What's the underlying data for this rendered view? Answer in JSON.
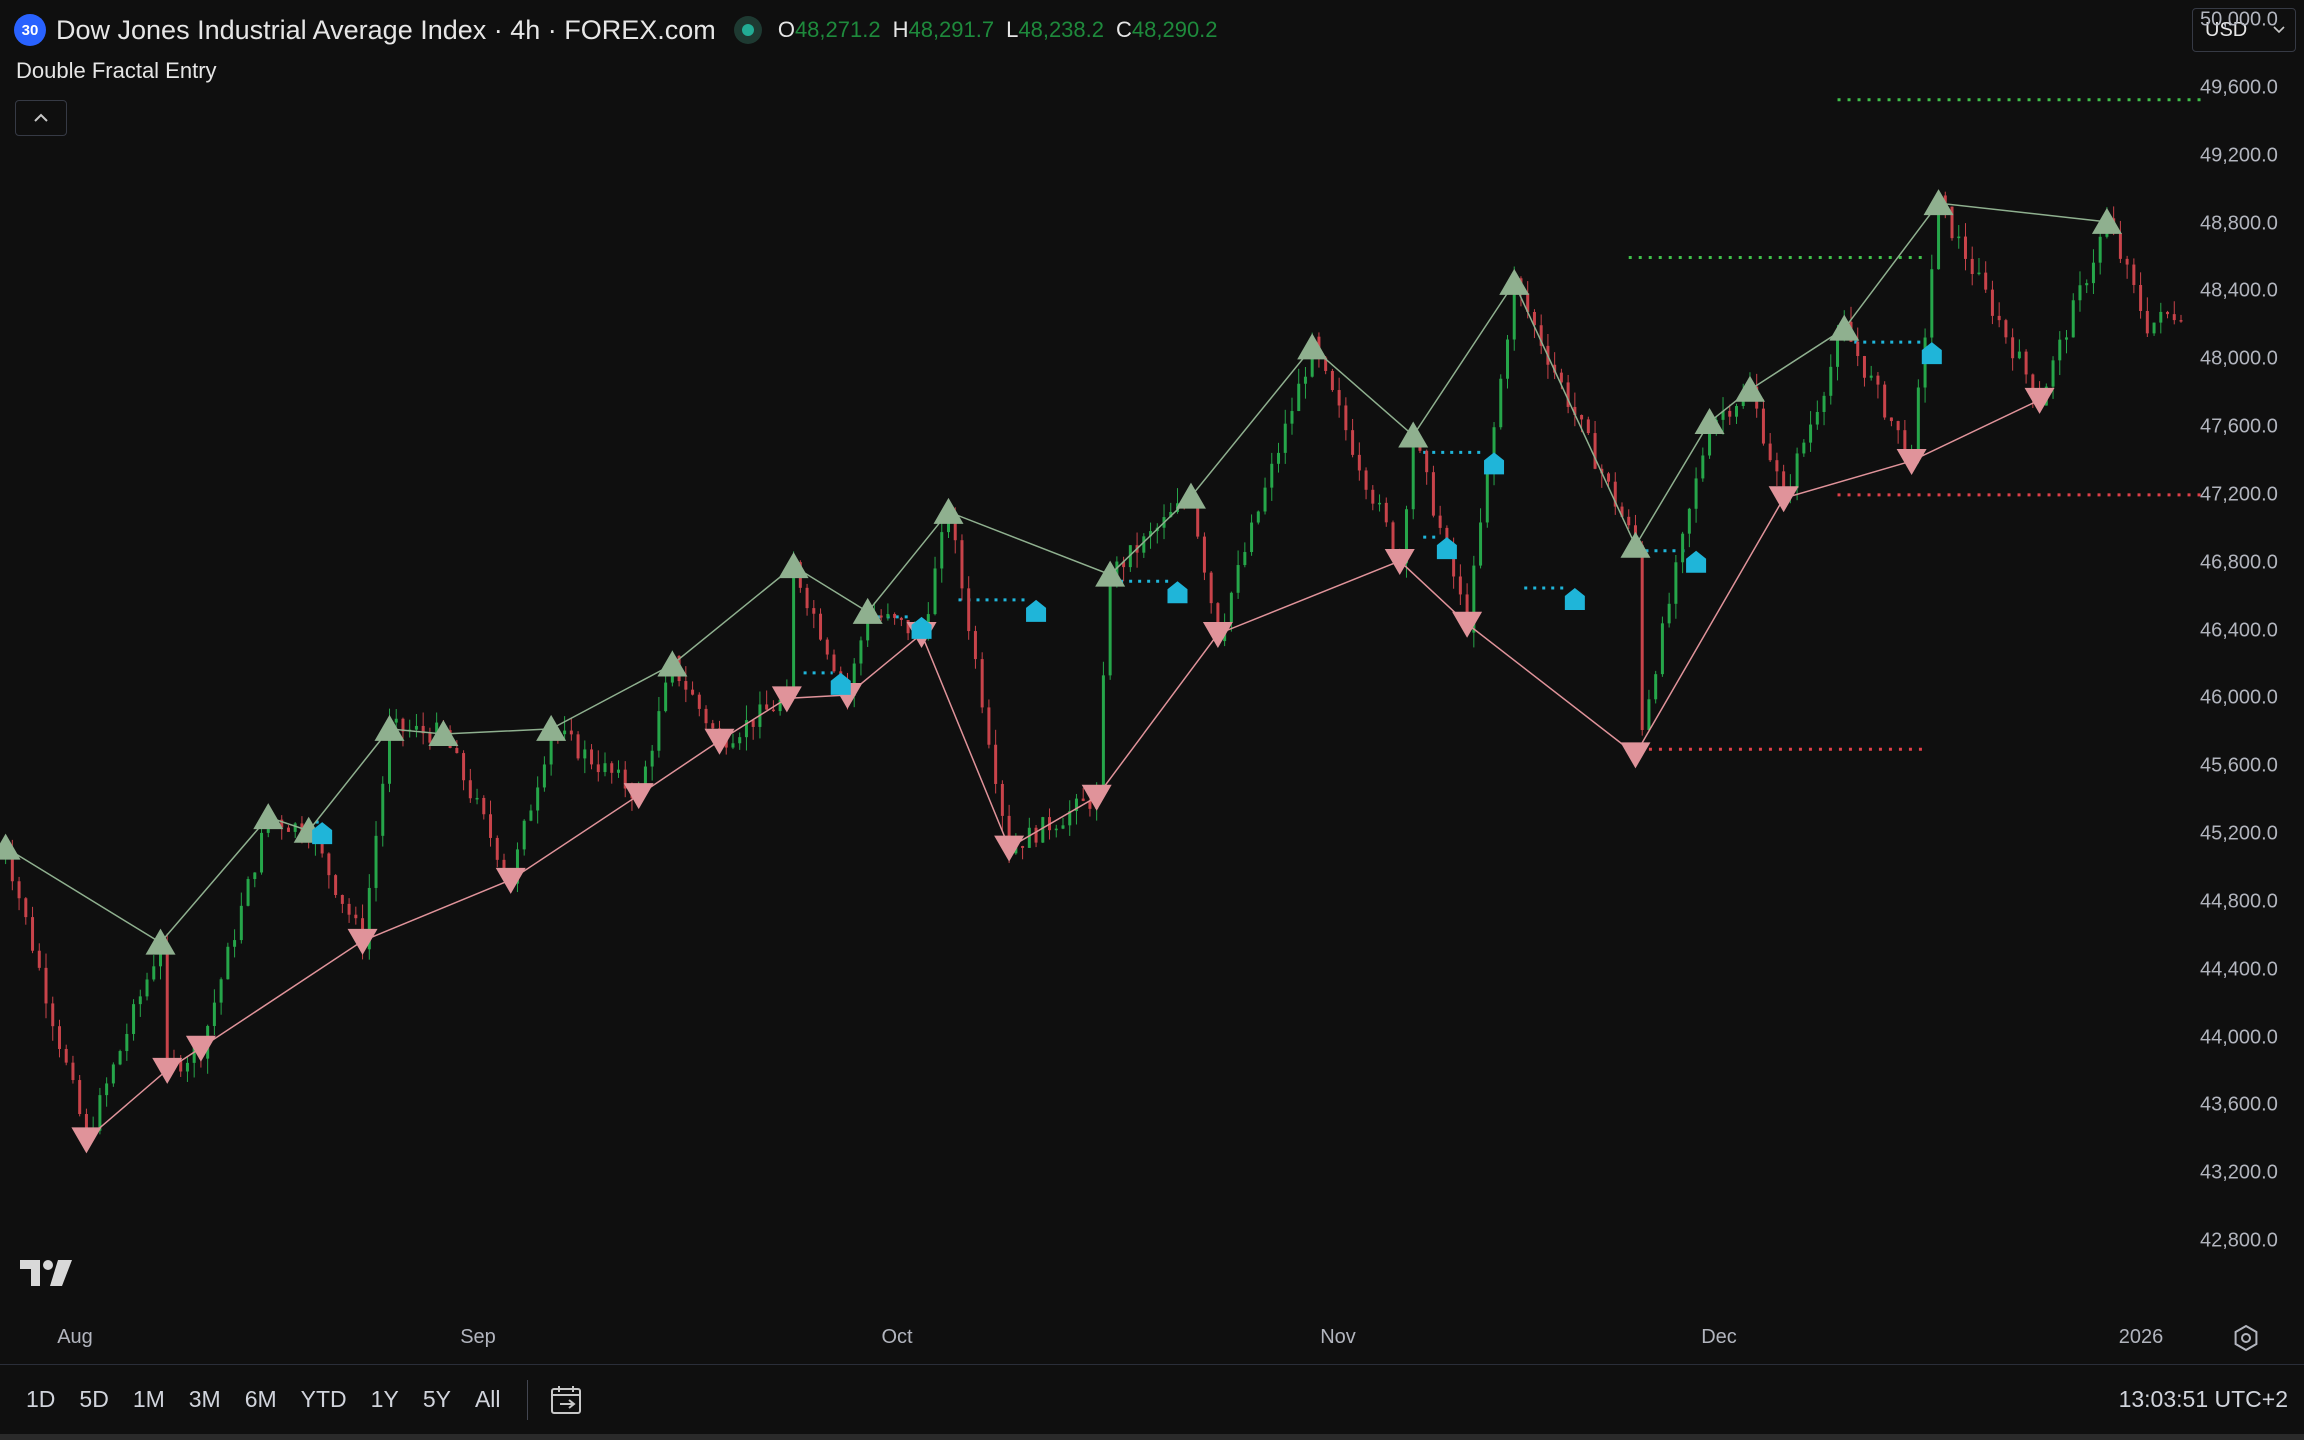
{
  "header": {
    "symbol_badge": "30",
    "title": "Dow Jones Industrial Average Index · 4h · FOREX.com",
    "ohlc": [
      {
        "key": "O",
        "value": "48,271.2"
      },
      {
        "key": "H",
        "value": "48,291.7"
      },
      {
        "key": "L",
        "value": "48,238.2"
      },
      {
        "key": "C",
        "value": "48,290.2"
      }
    ],
    "ohlc_color": "#1e8a3c"
  },
  "indicator": {
    "name": "Double Fractal Entry",
    "collapse_icon": "chevron-up-icon"
  },
  "currency": {
    "label": "USD",
    "icon": "chevron-down-icon"
  },
  "price_axis": {
    "labels": [
      "50,000.0",
      "49,600.0",
      "49,200.0",
      "48,800.0",
      "48,400.0",
      "48,000.0",
      "47,600.0",
      "47,200.0",
      "46,800.0",
      "46,400.0",
      "46,000.0",
      "45,600.0",
      "45,200.0",
      "44,800.0",
      "44,400.0",
      "44,000.0",
      "43,600.0",
      "43,200.0",
      "42,800.0"
    ]
  },
  "time_axis": {
    "labels": [
      "Aug",
      "Sep",
      "Oct",
      "Nov",
      "Dec",
      "2026"
    ],
    "settings_icon": "gear-icon"
  },
  "logo": {
    "icon": "tradingview-logo-icon"
  },
  "bottom_bar": {
    "ranges": [
      "1D",
      "5D",
      "1M",
      "3M",
      "6M",
      "YTD",
      "1Y",
      "5Y",
      "All"
    ],
    "date_range_icon": "calendar-range-icon",
    "clock": "13:03:51 UTC+2"
  },
  "colors": {
    "background": "#0f0f0f",
    "up_fractal": "#8fb08f",
    "down_fractal": "#e0939a",
    "entry_marker": "#1fb5d9",
    "target_line": "#3fbf4a",
    "stop_line": "#e0404a",
    "candle_up": "#26a64a",
    "candle_down": "#c8434a"
  },
  "chart_data": {
    "type": "candlestick",
    "title": "",
    "x_ticks": [
      "Aug",
      "Sep",
      "Oct",
      "Nov",
      "Dec",
      "2026"
    ],
    "ylim": [
      42600,
      50200
    ],
    "y_ticks": [
      50000,
      49600,
      49200,
      48800,
      48400,
      48000,
      47600,
      47200,
      46800,
      46400,
      46000,
      45600,
      45200,
      44800,
      44400,
      44000,
      43600,
      43200,
      42800
    ],
    "last_close": 48290.2,
    "up_fractals": [
      {
        "day": 1,
        "price": 45120
      },
      {
        "day": 12.5,
        "price": 44560
      },
      {
        "day": 20.5,
        "price": 45300
      },
      {
        "day": 23.5,
        "price": 45220
      },
      {
        "day": 29.5,
        "price": 45820
      },
      {
        "day": 33.5,
        "price": 45790
      },
      {
        "day": 41.5,
        "price": 45820
      },
      {
        "day": 50.5,
        "price": 46200
      },
      {
        "day": 59.5,
        "price": 46780
      },
      {
        "day": 65,
        "price": 46510
      },
      {
        "day": 71,
        "price": 47100
      },
      {
        "day": 83,
        "price": 46730
      },
      {
        "day": 89,
        "price": 47190
      },
      {
        "day": 98,
        "price": 48070
      },
      {
        "day": 105.5,
        "price": 47550
      },
      {
        "day": 113,
        "price": 48450
      },
      {
        "day": 122,
        "price": 46900
      },
      {
        "day": 127.5,
        "price": 47630
      },
      {
        "day": 130.5,
        "price": 47820
      },
      {
        "day": 137.5,
        "price": 48180
      },
      {
        "day": 144.5,
        "price": 48920
      },
      {
        "day": 157,
        "price": 48810
      }
    ],
    "down_fractals": [
      {
        "day": 7,
        "price": 43400
      },
      {
        "day": 13,
        "price": 43810
      },
      {
        "day": 15.5,
        "price": 43940
      },
      {
        "day": 27.5,
        "price": 44570
      },
      {
        "day": 38.5,
        "price": 44930
      },
      {
        "day": 48,
        "price": 45430
      },
      {
        "day": 54,
        "price": 45750
      },
      {
        "day": 59,
        "price": 46000
      },
      {
        "day": 63.5,
        "price": 46020
      },
      {
        "day": 69,
        "price": 46380
      },
      {
        "day": 75.5,
        "price": 45120
      },
      {
        "day": 82,
        "price": 45420
      },
      {
        "day": 91,
        "price": 46380
      },
      {
        "day": 104.5,
        "price": 46810
      },
      {
        "day": 109.5,
        "price": 46440
      },
      {
        "day": 122,
        "price": 45670
      },
      {
        "day": 133,
        "price": 47180
      },
      {
        "day": 142.5,
        "price": 47400
      },
      {
        "day": 152,
        "price": 47760
      }
    ],
    "entries": [
      {
        "day": 24.5,
        "price": 45200
      },
      {
        "day": 63,
        "price": 46080
      },
      {
        "day": 69,
        "price": 46410
      },
      {
        "day": 77.5,
        "price": 46510
      },
      {
        "day": 88,
        "price": 46620
      },
      {
        "day": 108,
        "price": 46880
      },
      {
        "day": 111.5,
        "price": 47380
      },
      {
        "day": 117.5,
        "price": 46580
      },
      {
        "day": 126.5,
        "price": 46800
      },
      {
        "day": 144,
        "price": 48030
      }
    ],
    "target_levels": [
      {
        "start_day": 121.5,
        "end_day": 143.5,
        "price": 48600
      },
      {
        "start_day": 137,
        "end_day": 164,
        "price": 49530
      }
    ],
    "stop_levels": [
      {
        "start_day": 123,
        "end_day": 143.5,
        "price": 45700
      },
      {
        "start_day": 137,
        "end_day": 164,
        "price": 47200
      }
    ]
  }
}
